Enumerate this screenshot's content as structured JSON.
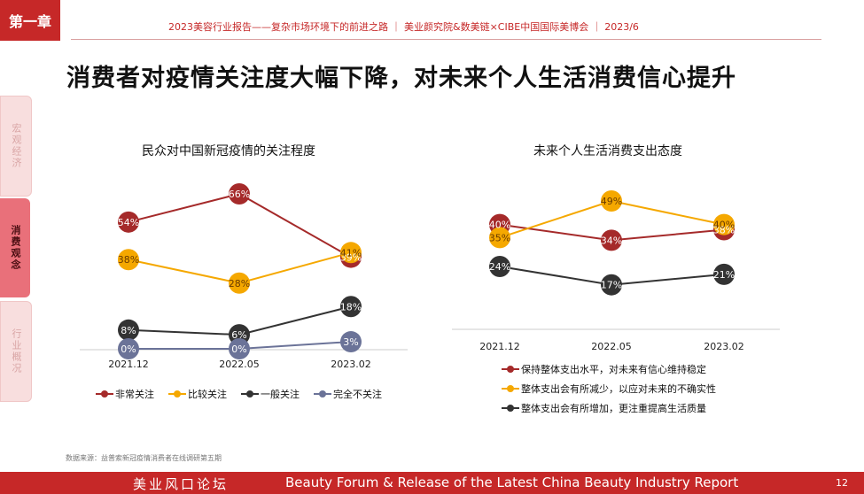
{
  "header": {
    "chapter": "第一章",
    "report_line": "2023美容行业报告——复杂市场环境下的前进之路  ｜  美业颜究院&数美链×CIBE中国国际美博会  ｜  2023/6"
  },
  "title": "消费者对疫情关注度大幅下降，对未来个人生活消费信心提升",
  "sidenav": [
    {
      "label": "宏观经济",
      "active": false
    },
    {
      "label": "消费观念",
      "active": true
    },
    {
      "label": "行业概况",
      "active": false
    }
  ],
  "chart_data": [
    {
      "type": "line",
      "title": "民众对中国新冠疫情的关注程度",
      "categories": [
        "2021.12",
        "2022.05",
        "2023.02"
      ],
      "series": [
        {
          "name": "非常关注",
          "values": [
            54,
            66,
            39
          ],
          "labels": [
            "54%",
            "66%",
            "39%"
          ],
          "color": "#a52a2a"
        },
        {
          "name": "比较关注",
          "values": [
            38,
            28,
            41
          ],
          "labels": [
            "38%",
            "28%",
            "41%"
          ],
          "color": "#f5a800"
        },
        {
          "name": "一般关注",
          "values": [
            8,
            6,
            18
          ],
          "labels": [
            "8%",
            "6%",
            "18%"
          ],
          "color": "#333333"
        },
        {
          "name": "完全不关注",
          "values": [
            0,
            0,
            3
          ],
          "labels": [
            "0%",
            "0%",
            "3%"
          ],
          "color": "#6b7398"
        }
      ],
      "ylim": [
        0,
        70
      ],
      "legend": "bottom"
    },
    {
      "type": "line",
      "title": "未来个人生活消费支出态度",
      "categories": [
        "2021.12",
        "2022.05",
        "2023.02"
      ],
      "series": [
        {
          "name": "保持整体支出水平，对未来有信心维持稳定",
          "values": [
            40,
            34,
            38
          ],
          "labels": [
            "40%",
            "34%",
            "38%"
          ],
          "color": "#a52a2a"
        },
        {
          "name": "整体支出会有所减少，以应对未来的不确实性",
          "values": [
            35,
            49,
            40
          ],
          "labels": [
            "35%",
            "49%",
            "40%"
          ],
          "color": "#f5a800"
        },
        {
          "name": "整体支出会有所增加，更注重提高生活质量",
          "values": [
            24,
            17,
            21
          ],
          "labels": [
            "24%",
            "17%",
            "21%"
          ],
          "color": "#333333"
        }
      ],
      "ylim": [
        0,
        55
      ],
      "legend": "bottom"
    }
  ],
  "source": "数据来源：益普索新冠疫情消费者在线调研第五期",
  "footer": {
    "forum_cn": "美业风口论坛",
    "forum_en": "Beauty Forum & Release of the Latest China Beauty Industry Report",
    "page": "12"
  }
}
